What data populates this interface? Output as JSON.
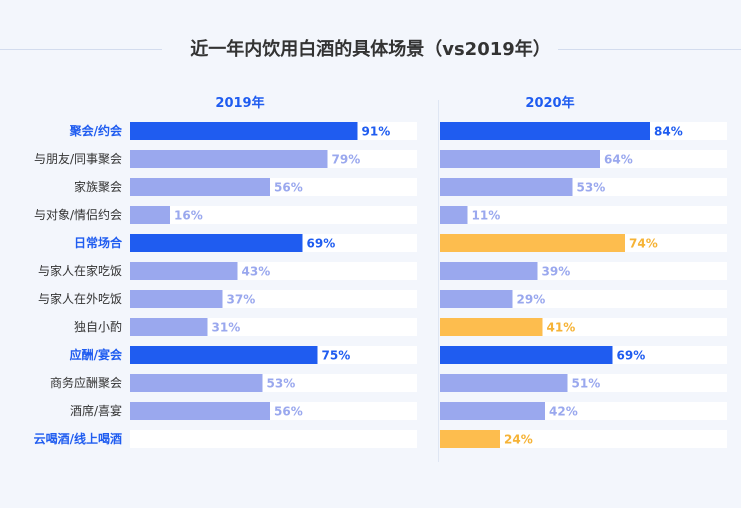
{
  "title": "近一年内饮用白酒的具体场景（vs2019年）",
  "colors": {
    "main": "#1f5cf0",
    "sub": "#9aa8ee",
    "highlight": "#fdbd4e",
    "label_main": "#1f5cf0",
    "label_sub": "#9aa8ee",
    "label_highlight": "#f6b336",
    "row_bg": "#ffffff",
    "cat_main": "#1f5cf0",
    "cat_sub": "#333333"
  },
  "chart_data": {
    "type": "bar",
    "orientation": "horizontal",
    "title": "近一年内饮用白酒的具体场景（vs2019年）",
    "unit": "%",
    "xlim": [
      0,
      100
    ],
    "categories": [
      "聚会/约会",
      "与朋友/同事聚会",
      "家族聚会",
      "与对象/情侣约会",
      "日常场合",
      "与家人在家吃饭",
      "与家人在外吃饭",
      "独自小酌",
      "应酬/宴会",
      "商务应酬聚会",
      "酒席/喜宴",
      "云喝酒/线上喝酒"
    ],
    "category_level": [
      "main",
      "sub",
      "sub",
      "sub",
      "main",
      "sub",
      "sub",
      "sub",
      "main",
      "sub",
      "sub",
      "main"
    ],
    "series": [
      {
        "name": "2019年",
        "values": [
          91,
          79,
          56,
          16,
          69,
          43,
          37,
          31,
          75,
          53,
          56,
          null
        ],
        "highlight": [
          false,
          false,
          false,
          false,
          false,
          false,
          false,
          false,
          false,
          false,
          false,
          false
        ]
      },
      {
        "name": "2020年",
        "values": [
          84,
          64,
          53,
          11,
          74,
          39,
          29,
          41,
          69,
          51,
          42,
          24
        ],
        "highlight": [
          false,
          false,
          false,
          false,
          true,
          false,
          false,
          true,
          false,
          false,
          false,
          true
        ]
      }
    ]
  }
}
